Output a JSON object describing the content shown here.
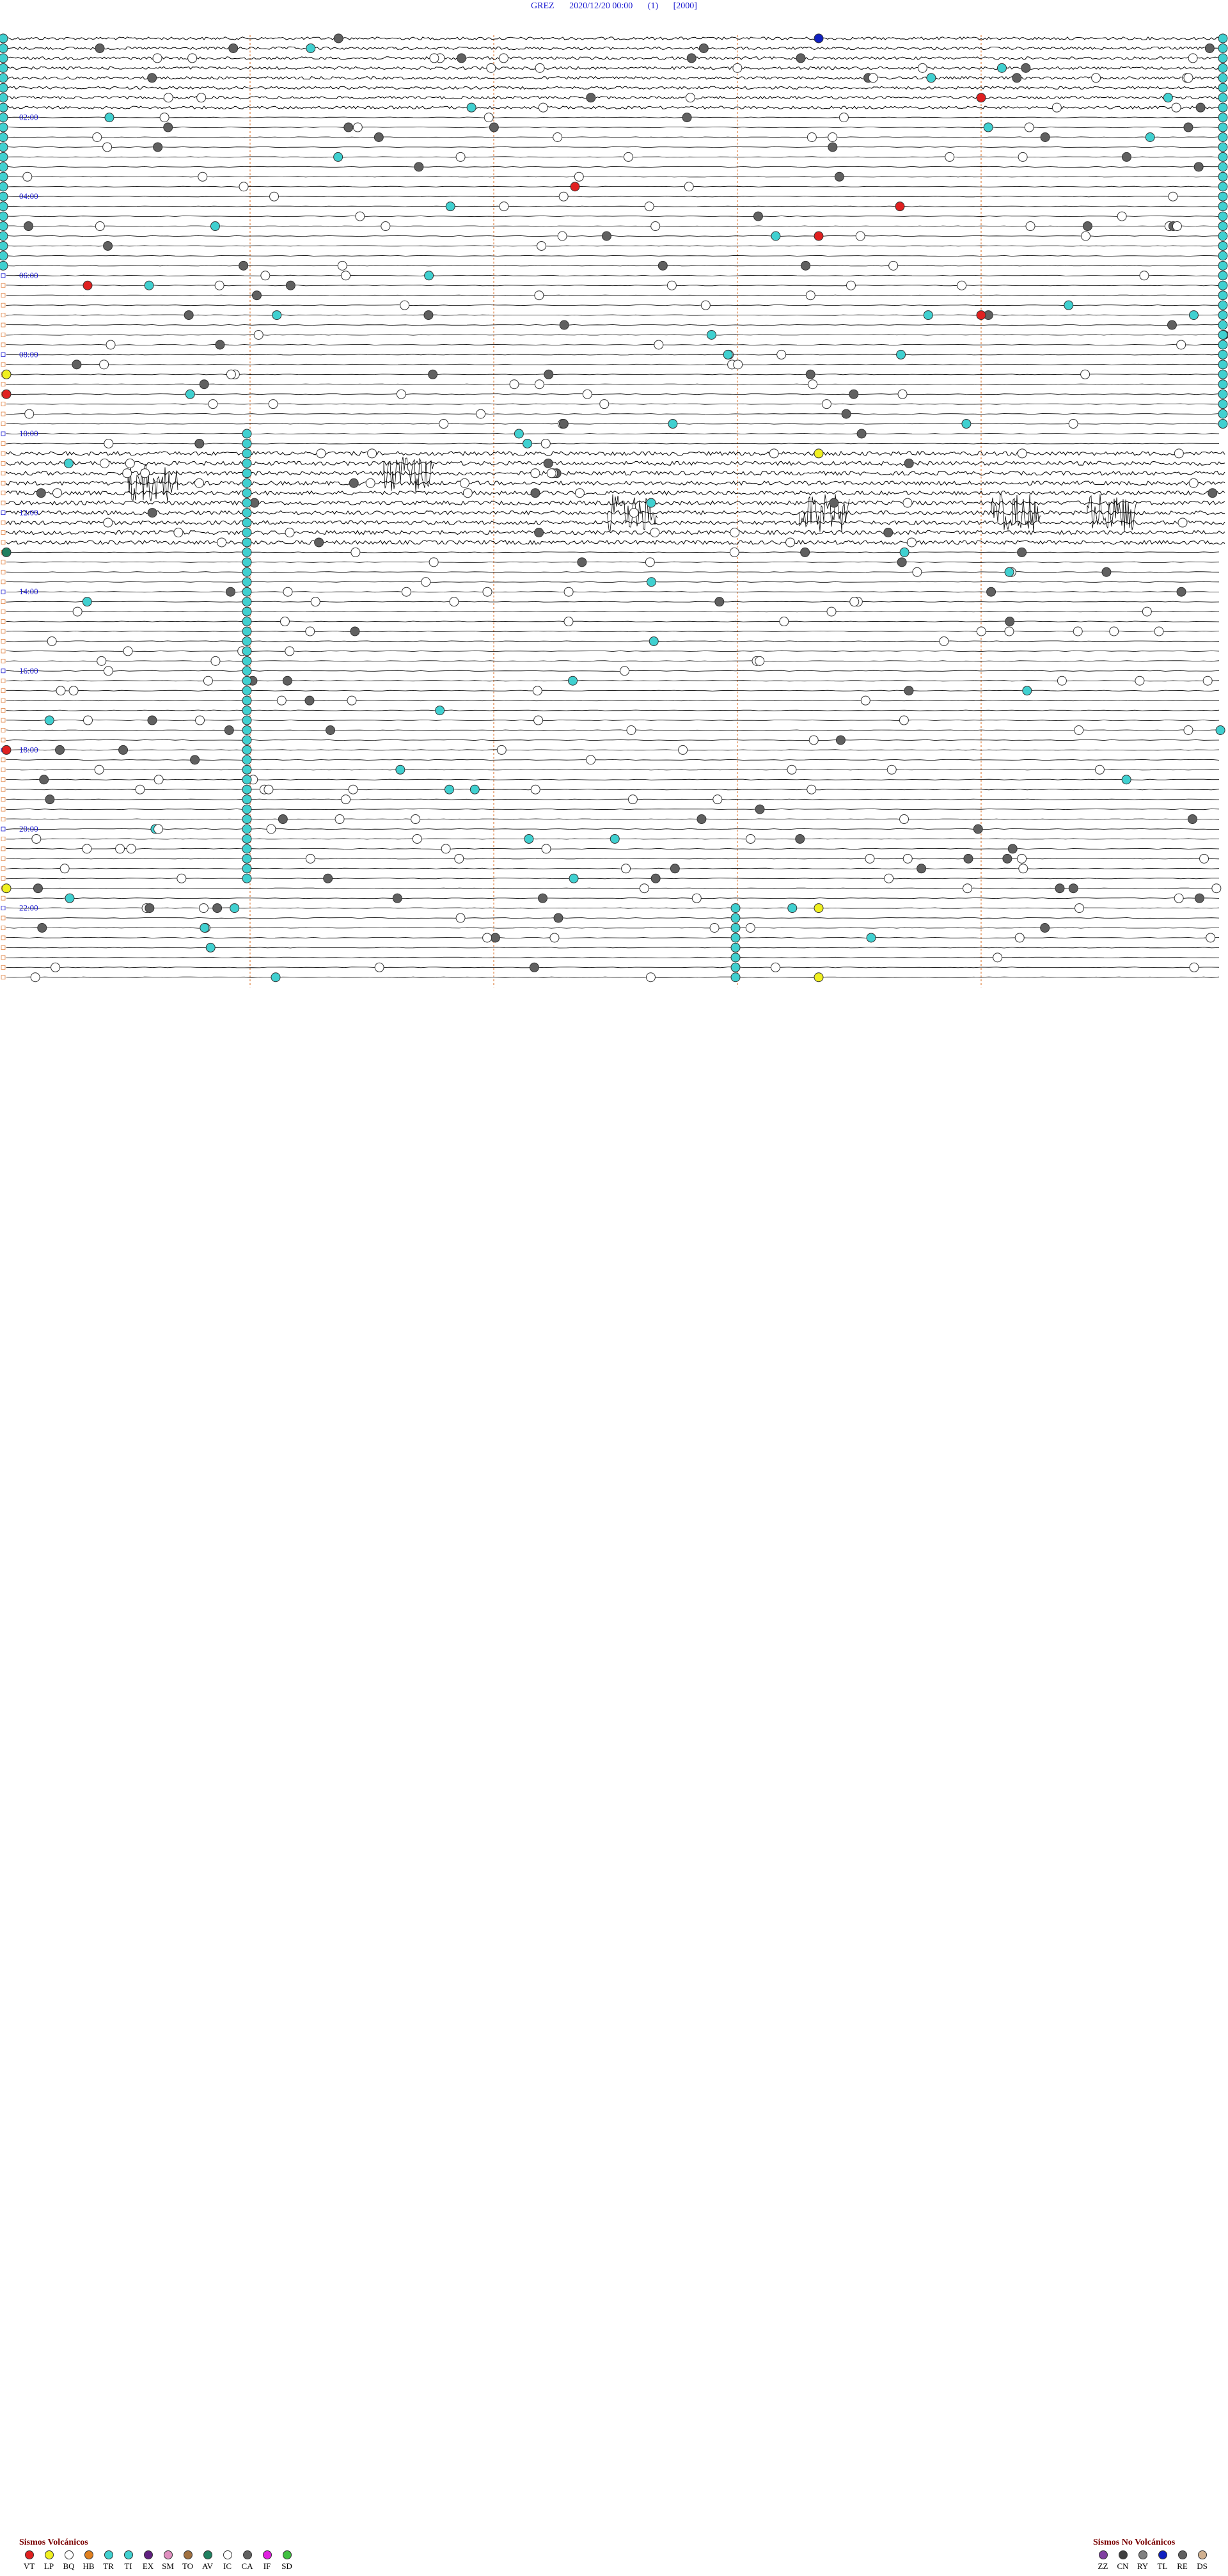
{
  "header": {
    "station": "GREZ",
    "datetime": "2020/12/20 00:00",
    "index": "(1)",
    "code": "[2000]"
  },
  "chart_data": {
    "type": "scatter",
    "description_axis": "helicorder",
    "time_labels": [
      "02:00",
      "04:00",
      "06:00",
      "08:00",
      "10:00",
      "12:00",
      "14:00",
      "16:00",
      "18:00",
      "20:00",
      "22:00"
    ],
    "colors": {
      "trace": "#000000",
      "time_label": "#1a1ad0",
      "minute_marker": "#e08040",
      "VT": "#e02020",
      "LP": "#f0f020",
      "BQ": "#ffffff",
      "HB": "#e08020",
      "TR": "#40d0d0",
      "TI": "#40d0d0",
      "EX": "#602080",
      "SM": "#e090c0",
      "TO": "#a07040",
      "AV": "#208060",
      "IC": "#ffffff",
      "CA": "#606060",
      "IF": "#e020e0",
      "SD": "#40c040",
      "ZZ": "#8040a0",
      "CN": "#404040",
      "RY": "#808080",
      "TL": "#1020c0",
      "RE": "#606060",
      "DS": "#d0b090"
    },
    "volcanic_legend": {
      "title": "Sismos Volcánicos",
      "codes": [
        "VT",
        "LP",
        "BQ",
        "HB",
        "TR",
        "TI",
        "EX",
        "SM",
        "TO",
        "AV",
        "IC",
        "CA",
        "IF",
        "SD"
      ]
    },
    "non_volcanic_legend": {
      "title": "Sismos No Volcánicos",
      "codes": [
        "ZZ",
        "CN",
        "RY",
        "TL",
        "RE",
        "DS"
      ]
    },
    "events_sample": [
      {
        "time": "00:10",
        "class": "TL"
      },
      {
        "time": "01:42",
        "class": "VT"
      },
      {
        "time": "03:52",
        "class": "VT"
      },
      {
        "time": "04:26",
        "class": "VT"
      },
      {
        "time": "05:10",
        "class": "VT"
      },
      {
        "time": "06:16",
        "class": "VT"
      },
      {
        "time": "07:12",
        "class": "VT"
      },
      {
        "time": "08:30",
        "class": "LP"
      },
      {
        "time": "09:00",
        "class": "VT"
      },
      {
        "time": "10:40",
        "class": "LP"
      },
      {
        "time": "13:00",
        "class": "AV"
      },
      {
        "time": "18:00",
        "class": "VT"
      },
      {
        "time": "21:30",
        "class": "LP"
      },
      {
        "time": "22:10",
        "class": "LP"
      },
      {
        "time": "23:55",
        "class": "LP"
      }
    ]
  }
}
